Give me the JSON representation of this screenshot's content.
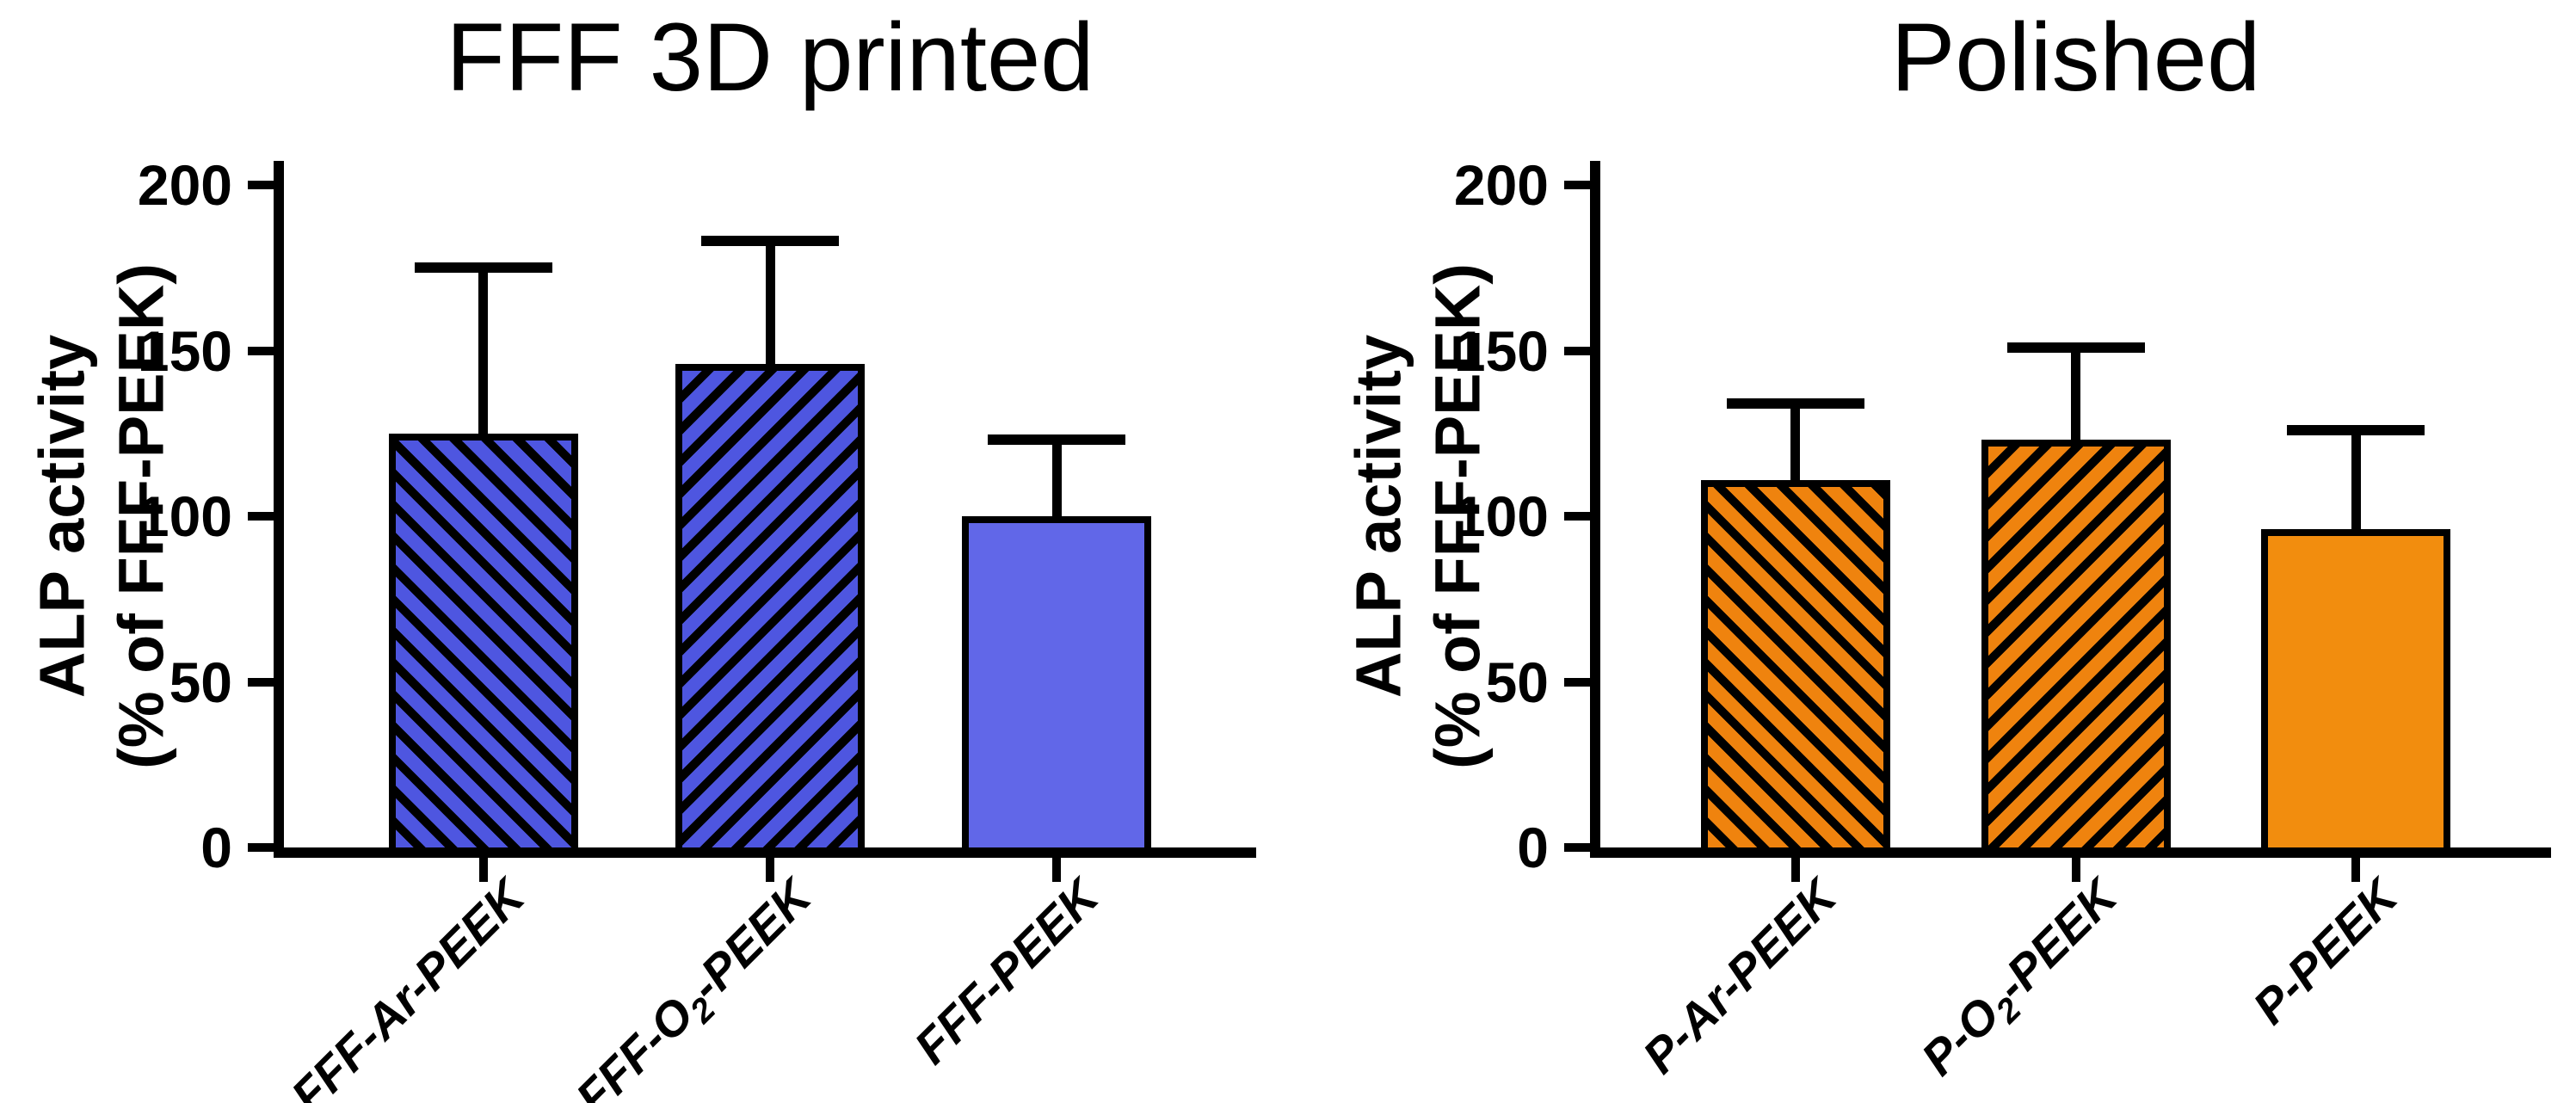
{
  "figure": {
    "background_color": "#FFFFFF",
    "text_color": "#000000"
  },
  "chart_data": [
    {
      "type": "bar",
      "title": "FFF 3D printed",
      "ylabel_line1": "ALP activity",
      "ylabel_line2": "(% of FFF-PEEK)",
      "categories": [
        "FFF-Ar-PEEK",
        "FFF-O₂-PEEK",
        "FFF-PEEK"
      ],
      "values": [
        125,
        146,
        100
      ],
      "errors_plus": [
        50,
        37,
        23
      ],
      "bar_styles": [
        "hatch-down",
        "hatch-up",
        "solid"
      ],
      "hatch_fill": "#4E56E0",
      "solid_fill": "#6167E8",
      "outline_color": "#000000",
      "ylim": [
        0,
        200
      ],
      "yticks": [
        0,
        50,
        100,
        150,
        200
      ],
      "grid": false,
      "legend": "none",
      "error_bars": "upper-only-with-cap"
    },
    {
      "type": "bar",
      "title": "Polished",
      "ylabel_line1": "ALP activity",
      "ylabel_line2": "(% of FFF-PEEK)",
      "categories": [
        "P-Ar-PEEK",
        "P-O₂-PEEK",
        "P-PEEK"
      ],
      "values": [
        111,
        123,
        96
      ],
      "errors_plus": [
        23,
        28,
        30
      ],
      "bar_styles": [
        "hatch-down",
        "hatch-up",
        "solid"
      ],
      "hatch_fill": "#EF830E",
      "solid_fill": "#F28D0E",
      "outline_color": "#000000",
      "ylim": [
        0,
        200
      ],
      "yticks": [
        0,
        50,
        100,
        150,
        200
      ],
      "grid": false,
      "legend": "none",
      "error_bars": "upper-only-with-cap"
    }
  ]
}
